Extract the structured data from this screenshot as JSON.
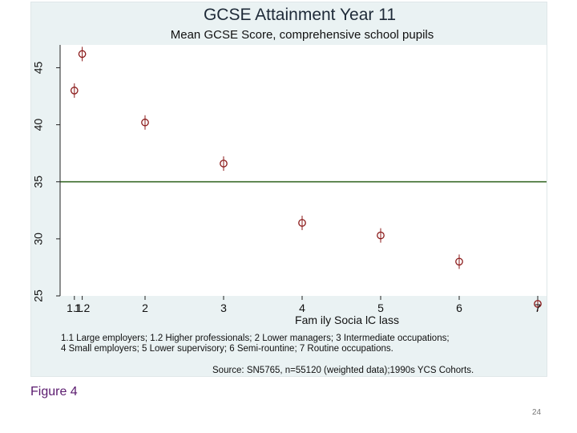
{
  "chart_data": {
    "type": "scatter",
    "title": "GCSE Attainment Year 11",
    "subtitle": "Mean GCSE Score, comprehensive school pupils",
    "xlabel": "Fam ily Socia lC lass",
    "ylabel": "",
    "categories": [
      "1.1",
      "1.2",
      "2",
      "3",
      "4",
      "5",
      "6",
      "7"
    ],
    "x_positions": [
      1.1,
      1.2,
      2,
      3,
      4,
      5,
      6,
      7
    ],
    "xlim": [
      1.0,
      7.0
    ],
    "values": [
      43.0,
      46.2,
      40.2,
      36.6,
      31.4,
      30.3,
      28.0,
      24.3
    ],
    "ylim": [
      25,
      47
    ],
    "y_ticks": [
      "25",
      "30",
      "35",
      "40",
      "45"
    ],
    "y_tick_values": [
      25,
      30,
      35,
      40,
      45
    ],
    "reference_line": 35,
    "notes": [
      "1.1 Large employers; 1.2 Higher professionals; 2 Lower managers; 3 Intermediate occupations;",
      "4 Small employers; 5 Lower supervisory; 6 Semi-rountine; 7 Routine occupations."
    ],
    "source": "Source: SN5765, n=55120 (weighted data);1990s YCS Cohorts."
  },
  "colors": {
    "panel": "#eaf2f3",
    "plot": "#ffffff",
    "marker": "#8b1a1a",
    "reference": "#3a6b2a",
    "figure_label": "#5a1a6e"
  },
  "figure_label": "Figure 4",
  "page_number": "24"
}
